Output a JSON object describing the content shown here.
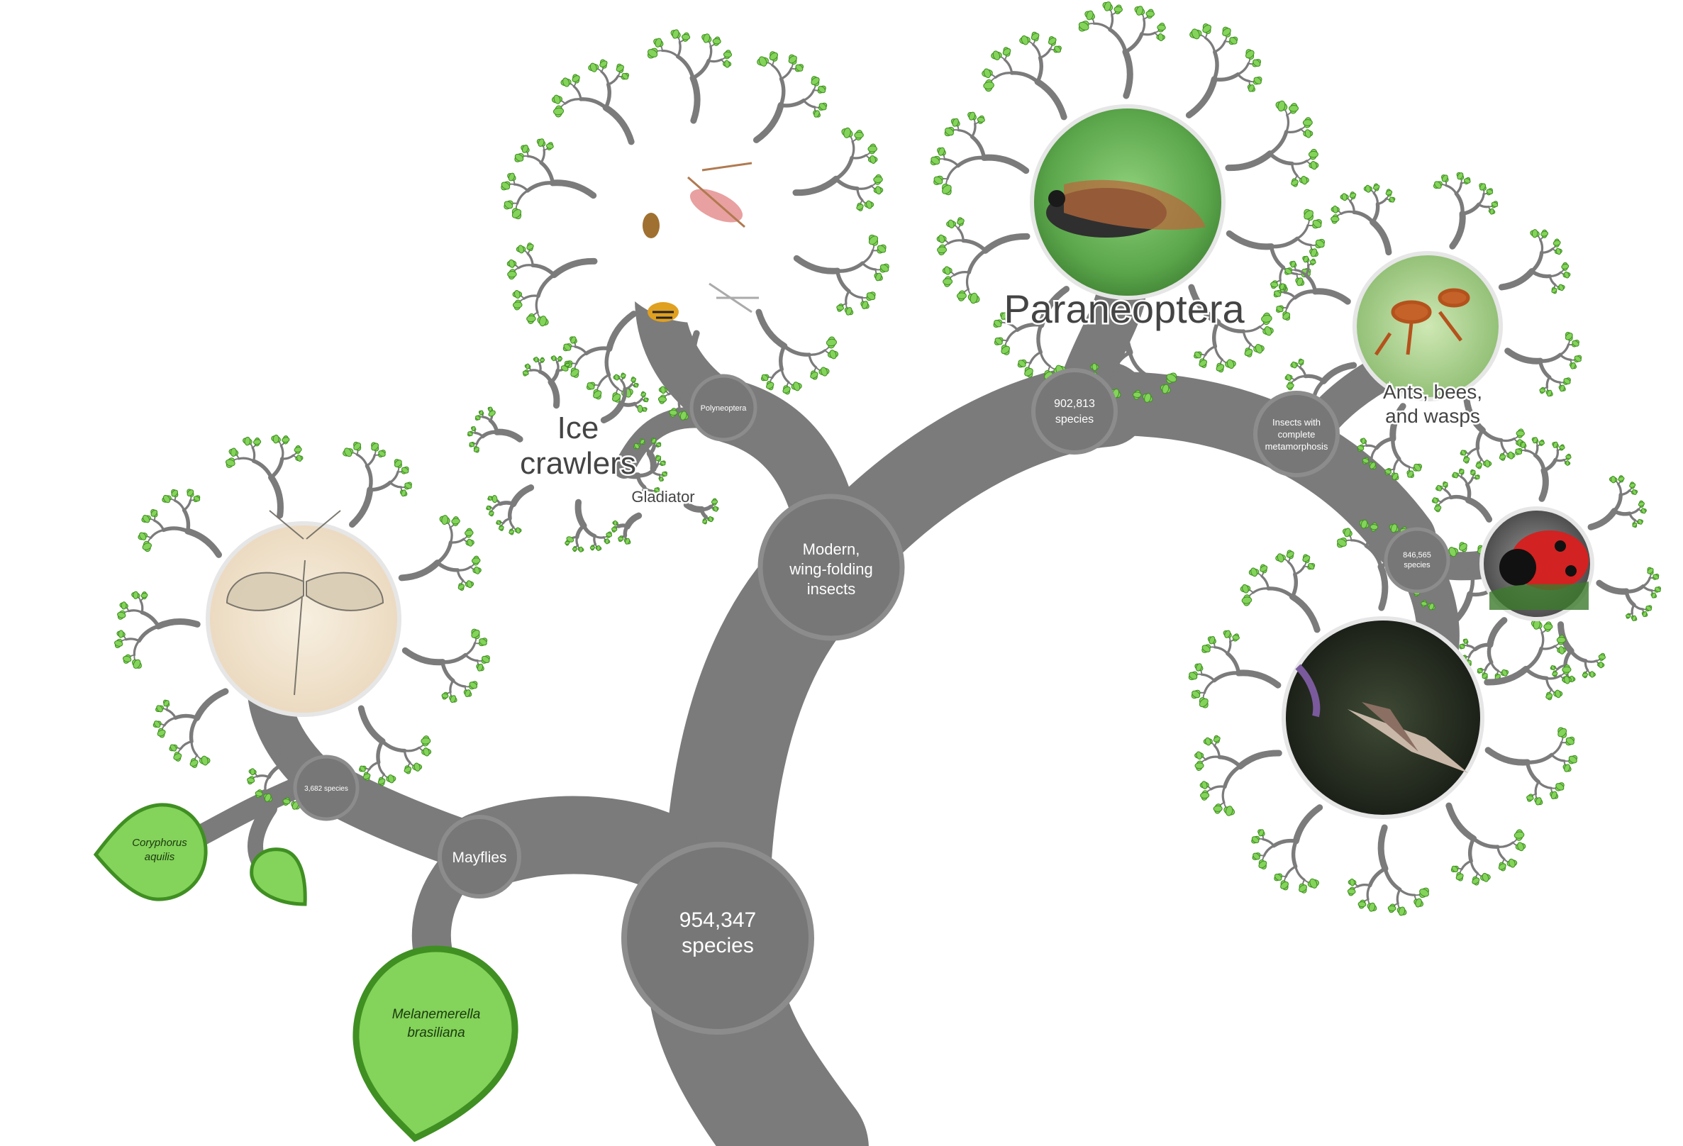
{
  "colors": {
    "branch": "#7b7b7b",
    "node_fill": "#777777",
    "node_ring": "#8c8c8c",
    "leaf_fill": "#84d35a",
    "leaf_stroke": "#3f8f22",
    "photo_ring": "#d9d9d9"
  },
  "tree": {
    "root": {
      "line1": "954,347",
      "line2": "species"
    },
    "modern": {
      "line1": "Modern,",
      "line2": "wing-folding",
      "line3": "insects"
    },
    "mayflies": {
      "label": "Mayflies"
    },
    "mayfly_count": {
      "label": "3,682 species"
    },
    "polyneoptera": {
      "label": "Polyneoptera"
    },
    "paraneoptera_count": {
      "line1": "902,813",
      "line2": "species"
    },
    "complete_meta": {
      "line1": "Insects with",
      "line2": "complete",
      "line3": "metamorphosis"
    },
    "beetle_count": {
      "line1": "846,565",
      "line2": "species"
    }
  },
  "labels": {
    "paraneoptera": "Paraneoptera",
    "ice_crawlers_1": "Ice",
    "ice_crawlers_2": "crawlers",
    "gladiator": "Gladiator",
    "ants_1": "Ants, bees,",
    "ants_2": "and wasps"
  },
  "leaves": {
    "coryphorus_1": "Coryphorus",
    "coryphorus_2": "aquilis",
    "melanemerella_1": "Melanemerella",
    "melanemerella_2": "brasiliana"
  },
  "photos": {
    "mayfly": "mayfly-photo",
    "polyneoptera": "polyneoptera-photo",
    "cicada": "cicada-photo",
    "ant": "ant-photo",
    "ladybug": "ladybug-photo",
    "moth": "moth-photo"
  }
}
